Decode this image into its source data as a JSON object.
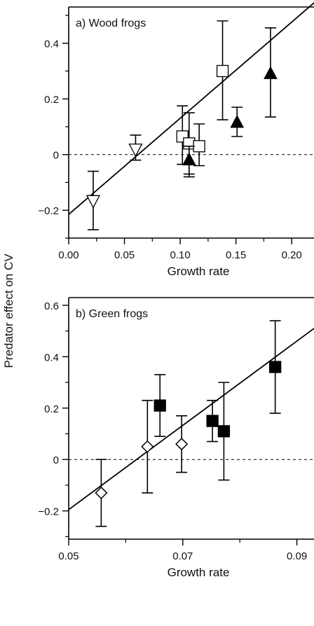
{
  "shared_ylabel": "Predator effect on CV",
  "chart_data": [
    {
      "type": "scatter",
      "title": "a) Wood frogs",
      "xlabel": "Growth rate",
      "ylabel": "Predator effect on CV",
      "xlim": [
        0.0,
        0.22
      ],
      "ylim": [
        -0.3,
        0.53
      ],
      "x_ticks": [
        0.0,
        0.05,
        0.1,
        0.15,
        0.2
      ],
      "x_tick_labels": [
        "0.00",
        "0.05",
        "0.10",
        "0.15",
        "0.20"
      ],
      "y_ticks": [
        -0.2,
        0,
        0.2,
        0.4
      ],
      "y_tick_labels": [
        "−0.2",
        "0",
        "0.2",
        "0.4"
      ],
      "reference_line_y": 0,
      "fit_line": {
        "x": [
          0.0,
          0.22
        ],
        "y": [
          -0.215,
          0.545
        ]
      },
      "series": [
        {
          "marker": "triangle-down-open",
          "points": [
            {
              "x": 0.022,
              "y": -0.165,
              "ylow": -0.27,
              "yhigh": -0.06
            },
            {
              "x": 0.06,
              "y": 0.02,
              "ylow": -0.02,
              "yhigh": 0.07
            }
          ]
        },
        {
          "marker": "square-open",
          "points": [
            {
              "x": 0.102,
              "y": 0.065,
              "ylow": -0.035,
              "yhigh": 0.175
            },
            {
              "x": 0.108,
              "y": 0.04,
              "ylow": -0.07,
              "yhigh": 0.15
            },
            {
              "x": 0.117,
              "y": 0.03,
              "ylow": -0.04,
              "yhigh": 0.11
            },
            {
              "x": 0.138,
              "y": 0.3,
              "ylow": 0.125,
              "yhigh": 0.48
            }
          ]
        },
        {
          "marker": "triangle-up-filled",
          "points": [
            {
              "x": 0.108,
              "y": -0.02,
              "ylow": -0.08,
              "yhigh": 0.03
            },
            {
              "x": 0.151,
              "y": 0.115,
              "ylow": 0.065,
              "yhigh": 0.17
            },
            {
              "x": 0.181,
              "y": 0.29,
              "ylow": 0.135,
              "yhigh": 0.455
            }
          ]
        }
      ]
    },
    {
      "type": "scatter",
      "title": "b) Green frogs",
      "xlabel": "Growth rate",
      "ylabel": "Predator effect on CV",
      "xlim": [
        0.05,
        0.093
      ],
      "ylim": [
        -0.31,
        0.63
      ],
      "x_ticks": [
        0.05,
        0.07,
        0.09
      ],
      "x_tick_labels": [
        "0.05",
        "0.07",
        "0.09"
      ],
      "y_ticks": [
        -0.2,
        0,
        0.2,
        0.4,
        0.6
      ],
      "y_tick_labels": [
        "−0.2",
        "0",
        "0.2",
        "0.4",
        "0.6"
      ],
      "reference_line_y": 0,
      "fit_line": {
        "x": [
          0.05,
          0.093
        ],
        "y": [
          -0.195,
          0.51
        ]
      },
      "series": [
        {
          "marker": "diamond-open",
          "points": [
            {
              "x": 0.0557,
              "y": -0.13,
              "ylow": -0.26,
              "yhigh": 0.0
            },
            {
              "x": 0.0638,
              "y": 0.05,
              "ylow": -0.13,
              "yhigh": 0.23
            },
            {
              "x": 0.0698,
              "y": 0.06,
              "ylow": -0.05,
              "yhigh": 0.17
            }
          ]
        },
        {
          "marker": "square-filled",
          "points": [
            {
              "x": 0.066,
              "y": 0.21,
              "ylow": 0.09,
              "yhigh": 0.33
            },
            {
              "x": 0.0752,
              "y": 0.15,
              "ylow": 0.07,
              "yhigh": 0.23
            },
            {
              "x": 0.0772,
              "y": 0.11,
              "ylow": -0.08,
              "yhigh": 0.3
            },
            {
              "x": 0.0862,
              "y": 0.36,
              "ylow": 0.18,
              "yhigh": 0.54
            }
          ]
        }
      ]
    }
  ]
}
